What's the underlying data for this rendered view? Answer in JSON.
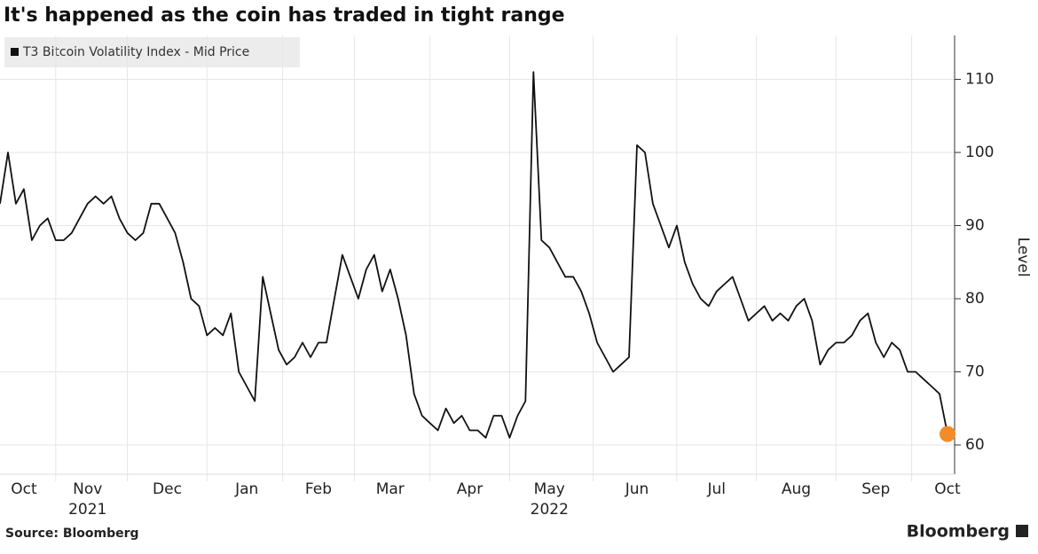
{
  "chart_data": {
    "type": "line",
    "title": "It's happened as the coin has traded in tight range",
    "y_label": "Level",
    "source": "Source: Bloomberg",
    "brand": "Bloomberg",
    "x_group_labels": [
      "2021",
      "2022"
    ],
    "legend": "left-top",
    "grid": true,
    "highlight_last": true,
    "highlight_color": "#f28c28",
    "categories": [
      null,
      null,
      null,
      "Oct",
      null,
      null,
      null,
      null,
      null,
      null,
      null,
      "Nov",
      null,
      null,
      null,
      null,
      null,
      null,
      null,
      null,
      null,
      "Dec",
      null,
      null,
      null,
      null,
      null,
      null,
      null,
      null,
      null,
      "Jan",
      null,
      null,
      null,
      null,
      null,
      null,
      null,
      null,
      "Feb",
      null,
      null,
      null,
      null,
      null,
      null,
      null,
      null,
      "Mar",
      null,
      null,
      null,
      null,
      null,
      null,
      null,
      null,
      null,
      "Apr",
      null,
      null,
      null,
      null,
      null,
      null,
      null,
      null,
      null,
      "May",
      null,
      null,
      null,
      null,
      null,
      null,
      null,
      null,
      null,
      null,
      "Jun",
      null,
      null,
      null,
      null,
      null,
      null,
      null,
      null,
      null,
      "Jul",
      null,
      null,
      null,
      null,
      null,
      null,
      null,
      null,
      null,
      "Aug",
      null,
      null,
      null,
      null,
      null,
      null,
      null,
      null,
      null,
      "Sep",
      null,
      null,
      null,
      null,
      null,
      null,
      null,
      null,
      "Oct"
    ],
    "series": [
      {
        "name": "T3 Bitcoin Volatility Index - Mid Price",
        "color": "#111111",
        "values": [
          93,
          100,
          93,
          95,
          88,
          90,
          91,
          88,
          88,
          89,
          91,
          93,
          94,
          93,
          94,
          91,
          89,
          88,
          89,
          93,
          93,
          91,
          89,
          85,
          80,
          79,
          75,
          76,
          75,
          78,
          70,
          68,
          66,
          83,
          78,
          73,
          71,
          72,
          74,
          72,
          74,
          74,
          80,
          86,
          83,
          80,
          84,
          86,
          81,
          84,
          80,
          75,
          67,
          64,
          63,
          62,
          65,
          63,
          64,
          62,
          62,
          61,
          64,
          64,
          61,
          64,
          66,
          111,
          88,
          87,
          85,
          83,
          83,
          81,
          78,
          74,
          72,
          70,
          71,
          72,
          101,
          100,
          93,
          90,
          87,
          90,
          85,
          82,
          80,
          79,
          81,
          82,
          83,
          80,
          77,
          78,
          79,
          77,
          78,
          77,
          79,
          80,
          77,
          71,
          73,
          74,
          74,
          75,
          77,
          78,
          74,
          72,
          74,
          73,
          70,
          70,
          69,
          68,
          67,
          61.5
        ]
      }
    ],
    "ylim": [
      56,
      116
    ],
    "yticks": [
      60,
      70,
      80,
      90,
      100,
      110
    ]
  }
}
